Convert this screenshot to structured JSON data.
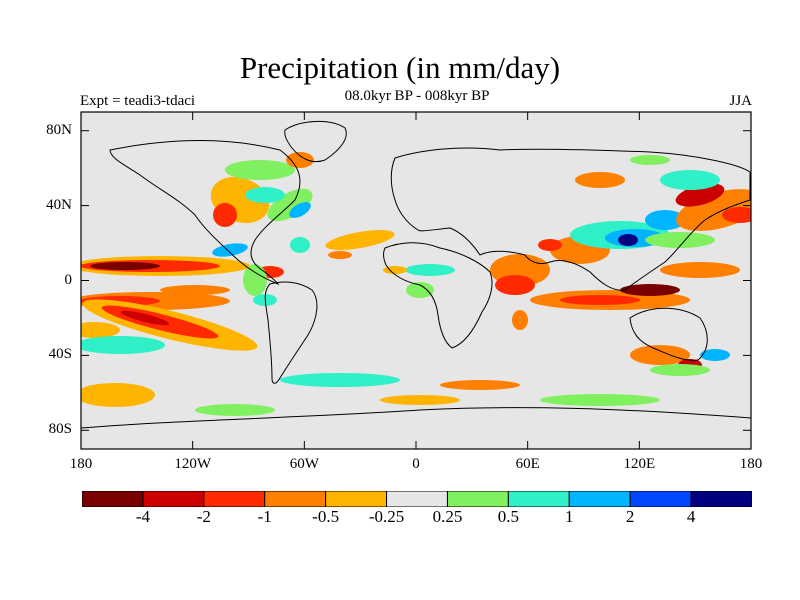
{
  "title": "Precipitation (in mm/day)",
  "subtitle": "08.0kyr BP - 008kyr BP",
  "left_label": "Expt = teadi3-tdaci",
  "season": "JJA",
  "lat_ticks": [
    {
      "label": "80N",
      "lat": 80
    },
    {
      "label": "40N",
      "lat": 40
    },
    {
      "label": "0",
      "lat": 0
    },
    {
      "label": "40S",
      "lat": -40
    },
    {
      "label": "80S",
      "lat": -80
    }
  ],
  "lon_ticks": [
    {
      "label": "180",
      "lon": -180
    },
    {
      "label": "120W",
      "lon": -120
    },
    {
      "label": "60W",
      "lon": -60
    },
    {
      "label": "0",
      "lon": 0
    },
    {
      "label": "60E",
      "lon": 60
    },
    {
      "label": "120E",
      "lon": 120
    },
    {
      "label": "180",
      "lon": 180
    }
  ],
  "colorbar": {
    "colors": [
      "#7a0000",
      "#cc0000",
      "#ff2a00",
      "#ff7f00",
      "#ffb400",
      "#e6e6e6",
      "#80f060",
      "#30f0c8",
      "#00b4ff",
      "#0046ff",
      "#000080"
    ],
    "labels": [
      "-4",
      "-2",
      "-1",
      "-0.5",
      "-0.25",
      "0.25",
      "0.5",
      "1",
      "2",
      "4"
    ]
  },
  "chart_data": {
    "type": "heatmap",
    "title": "Precipitation (in mm/day)",
    "subtitle": "08.0kyr BP - 008kyr BP",
    "experiment": "Expt = teadi3-tdaci",
    "season": "JJA",
    "lon_range": [
      -180,
      180
    ],
    "lat_range": [
      -90,
      90
    ],
    "levels": [
      -4,
      -2,
      -1,
      -0.5,
      -0.25,
      0.25,
      0.5,
      1,
      2,
      4
    ],
    "anomaly_regions": [
      {
        "region": "Tropical east Pacific ~10N",
        "value": -2
      },
      {
        "region": "Tropical east Pacific ~15S",
        "value": -1
      },
      {
        "region": "Central America / Caribbean",
        "value": 1
      },
      {
        "region": "US east coast / NW Atlantic",
        "value": 1
      },
      {
        "region": "South China Sea / Philippines",
        "value": 2
      },
      {
        "region": "Tibetan Plateau / Bay of Bengal",
        "value": 1
      },
      {
        "region": "Equatorial Indian Ocean",
        "value": -1
      },
      {
        "region": "Maritime continent",
        "value": -1
      },
      {
        "region": "NW Pacific ~35N",
        "value": -0.5
      },
      {
        "region": "Southern Ocean",
        "value": 0.5
      }
    ]
  }
}
